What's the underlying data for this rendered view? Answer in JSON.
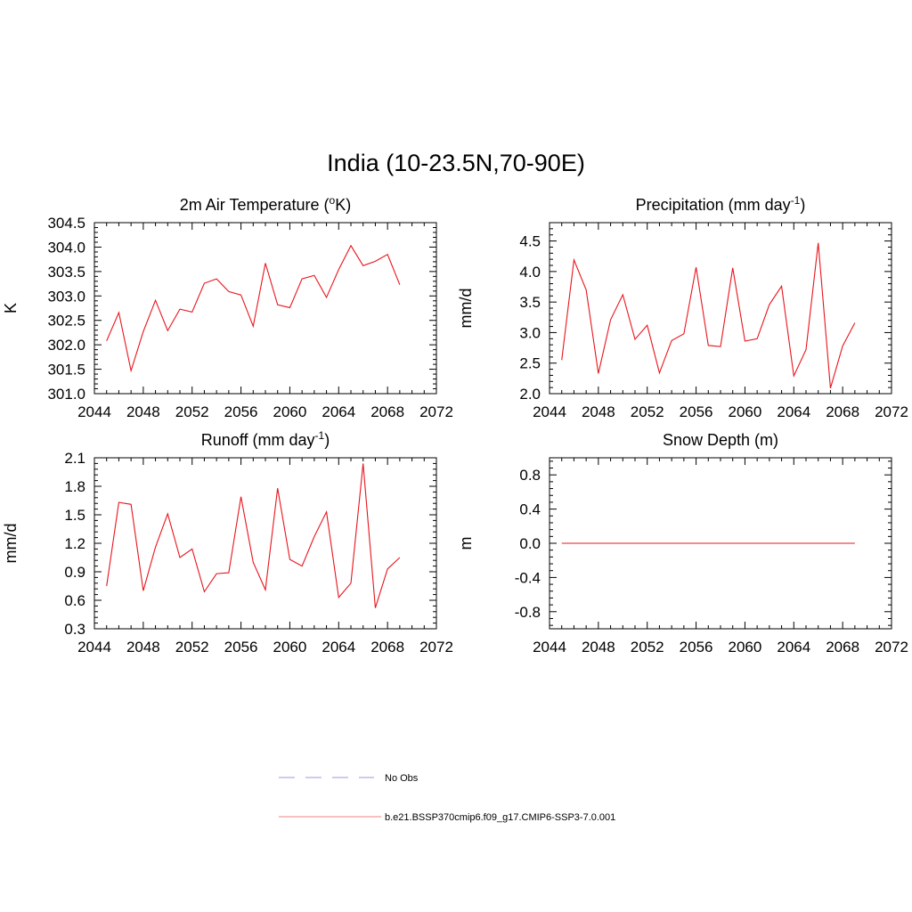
{
  "title": "India (10-23.5N,70-90E)",
  "colors": {
    "series": "#e8141c",
    "obs": "#9999dd",
    "legend_line": "#f08080"
  },
  "legend": [
    {
      "label": "No Obs",
      "style": "dashed",
      "color": "#9999dd"
    },
    {
      "label": "b.e21.BSSP370cmip6.f09_g17.CMIP6-SSP3-7.0.001",
      "style": "solid",
      "color": "#f08080"
    }
  ],
  "chart_data": [
    {
      "type": "line",
      "title": "2m Air Temperature (",
      "title_sup": "o",
      "title_after": "K)",
      "ylabel": "K",
      "xlim": [
        2044,
        2072
      ],
      "ylim": [
        301.0,
        304.5
      ],
      "xticks": [
        2044,
        2048,
        2052,
        2056,
        2060,
        2064,
        2068,
        2072
      ],
      "yticks": [
        301.0,
        301.5,
        302.0,
        302.5,
        303.0,
        303.5,
        304.0,
        304.5
      ],
      "ytick_labels": [
        "301.0",
        "301.5",
        "302.0",
        "302.5",
        "303.0",
        "303.5",
        "304.0",
        "304.5"
      ],
      "x": [
        2045,
        2046,
        2047,
        2048,
        2049,
        2050,
        2051,
        2052,
        2053,
        2054,
        2055,
        2056,
        2057,
        2058,
        2059,
        2060,
        2061,
        2062,
        2063,
        2064,
        2065,
        2066,
        2067,
        2068,
        2069
      ],
      "values": [
        302.08,
        302.66,
        301.47,
        302.27,
        302.91,
        302.29,
        302.73,
        302.67,
        303.26,
        303.35,
        303.09,
        303.02,
        302.38,
        303.67,
        302.82,
        302.76,
        303.35,
        303.42,
        302.97,
        303.54,
        304.03,
        303.62,
        303.71,
        303.85,
        303.23
      ]
    },
    {
      "type": "line",
      "title": "Precipitation (mm day",
      "title_sup": "-1",
      "title_after": ")",
      "ylabel": "mm/d",
      "xlim": [
        2044,
        2072
      ],
      "ylim": [
        2.0,
        4.8
      ],
      "xticks": [
        2044,
        2048,
        2052,
        2056,
        2060,
        2064,
        2068,
        2072
      ],
      "yticks": [
        2.0,
        2.5,
        3.0,
        3.5,
        4.0,
        4.5
      ],
      "ytick_labels": [
        "2.0",
        "2.5",
        "3.0",
        "3.5",
        "4.0",
        "4.5"
      ],
      "x": [
        2045,
        2046,
        2047,
        2048,
        2049,
        2050,
        2051,
        2052,
        2053,
        2054,
        2055,
        2056,
        2057,
        2058,
        2059,
        2060,
        2061,
        2062,
        2063,
        2064,
        2065,
        2066,
        2067,
        2068,
        2069
      ],
      "values": [
        2.55,
        4.19,
        3.7,
        2.33,
        3.21,
        3.62,
        2.89,
        3.12,
        2.34,
        2.87,
        2.98,
        4.07,
        2.79,
        2.77,
        4.06,
        2.86,
        2.9,
        3.46,
        3.76,
        2.29,
        2.72,
        4.47,
        2.09,
        2.78,
        3.16
      ]
    },
    {
      "type": "line",
      "title": "Runoff (mm day",
      "title_sup": "-1",
      "title_after": ")",
      "ylabel": "mm/d",
      "xlim": [
        2044,
        2072
      ],
      "ylim": [
        0.3,
        2.1
      ],
      "xticks": [
        2044,
        2048,
        2052,
        2056,
        2060,
        2064,
        2068,
        2072
      ],
      "yticks": [
        0.3,
        0.6,
        0.9,
        1.2,
        1.5,
        1.8,
        2.1
      ],
      "ytick_labels": [
        "0.3",
        "0.6",
        "0.9",
        "1.2",
        "1.5",
        "1.8",
        "2.1"
      ],
      "x": [
        2045,
        2046,
        2047,
        2048,
        2049,
        2050,
        2051,
        2052,
        2053,
        2054,
        2055,
        2056,
        2057,
        2058,
        2059,
        2060,
        2061,
        2062,
        2063,
        2064,
        2065,
        2066,
        2067,
        2068,
        2069
      ],
      "values": [
        0.75,
        1.63,
        1.61,
        0.7,
        1.16,
        1.51,
        1.05,
        1.14,
        0.69,
        0.88,
        0.89,
        1.69,
        1.0,
        0.71,
        1.78,
        1.03,
        0.96,
        1.27,
        1.53,
        0.63,
        0.78,
        2.04,
        0.52,
        0.93,
        1.05
      ]
    },
    {
      "type": "line",
      "title": "Snow Depth (m)",
      "title_sup": "",
      "title_after": "",
      "ylabel": "m",
      "xlim": [
        2044,
        2072
      ],
      "ylim": [
        -1.0,
        1.0
      ],
      "xticks": [
        2044,
        2048,
        2052,
        2056,
        2060,
        2064,
        2068,
        2072
      ],
      "yticks": [
        -0.8,
        -0.4,
        0.0,
        0.4,
        0.8
      ],
      "ytick_labels": [
        "-0.8",
        "-0.4",
        "0.0",
        "0.4",
        "0.8"
      ],
      "x": [
        2045,
        2046,
        2047,
        2048,
        2049,
        2050,
        2051,
        2052,
        2053,
        2054,
        2055,
        2056,
        2057,
        2058,
        2059,
        2060,
        2061,
        2062,
        2063,
        2064,
        2065,
        2066,
        2067,
        2068,
        2069
      ],
      "values": [
        0,
        0,
        0,
        0,
        0,
        0,
        0,
        0,
        0,
        0,
        0,
        0,
        0,
        0,
        0,
        0,
        0,
        0,
        0,
        0,
        0,
        0,
        0,
        0,
        0
      ]
    }
  ]
}
